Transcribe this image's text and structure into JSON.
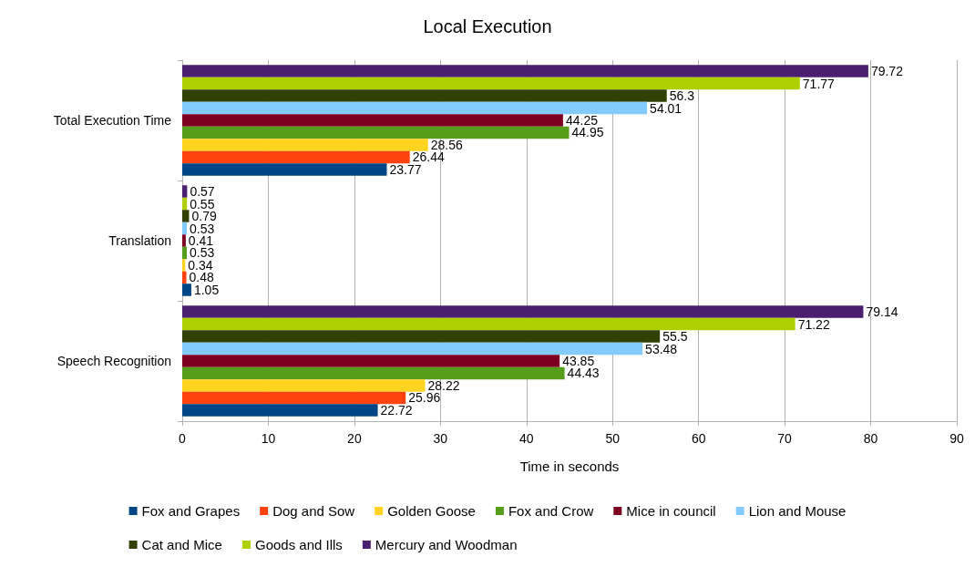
{
  "chart_data": {
    "type": "bar",
    "title": "Local Execution",
    "xlabel": "Time in seconds",
    "orientation": "horizontal",
    "categories": [
      "Total Execution Time",
      "Translation",
      "Speech Recognition"
    ],
    "series": [
      {
        "name": "Fox and Grapes",
        "color": "#004586",
        "values": [
          23.77,
          1.05,
          22.72
        ]
      },
      {
        "name": "Dog and Sow",
        "color": "#ff420e",
        "values": [
          26.44,
          0.48,
          25.96
        ]
      },
      {
        "name": "Golden Goose",
        "color": "#ffd320",
        "values": [
          28.56,
          0.34,
          28.22
        ]
      },
      {
        "name": "Fox and Crow",
        "color": "#579d1c",
        "values": [
          44.95,
          0.53,
          44.43
        ]
      },
      {
        "name": "Mice in council",
        "color": "#7e0021",
        "values": [
          44.25,
          0.41,
          43.85
        ]
      },
      {
        "name": "Lion and Mouse",
        "color": "#83caff",
        "values": [
          54.01,
          0.53,
          53.48
        ]
      },
      {
        "name": "Cat and Mice",
        "color": "#314004",
        "values": [
          56.3,
          0.79,
          55.5
        ]
      },
      {
        "name": "Goods and Ills",
        "color": "#aecf00",
        "values": [
          71.77,
          0.55,
          71.22
        ]
      },
      {
        "name": "Mercury and Woodman",
        "color": "#4b1f6f",
        "values": [
          79.72,
          0.57,
          79.14
        ]
      }
    ],
    "xlim": [
      0,
      90
    ],
    "xticks": [
      0,
      10,
      20,
      30,
      40,
      50,
      60,
      70,
      80,
      90
    ],
    "grid": "x",
    "legend": "bottom",
    "data_labels": true
  }
}
